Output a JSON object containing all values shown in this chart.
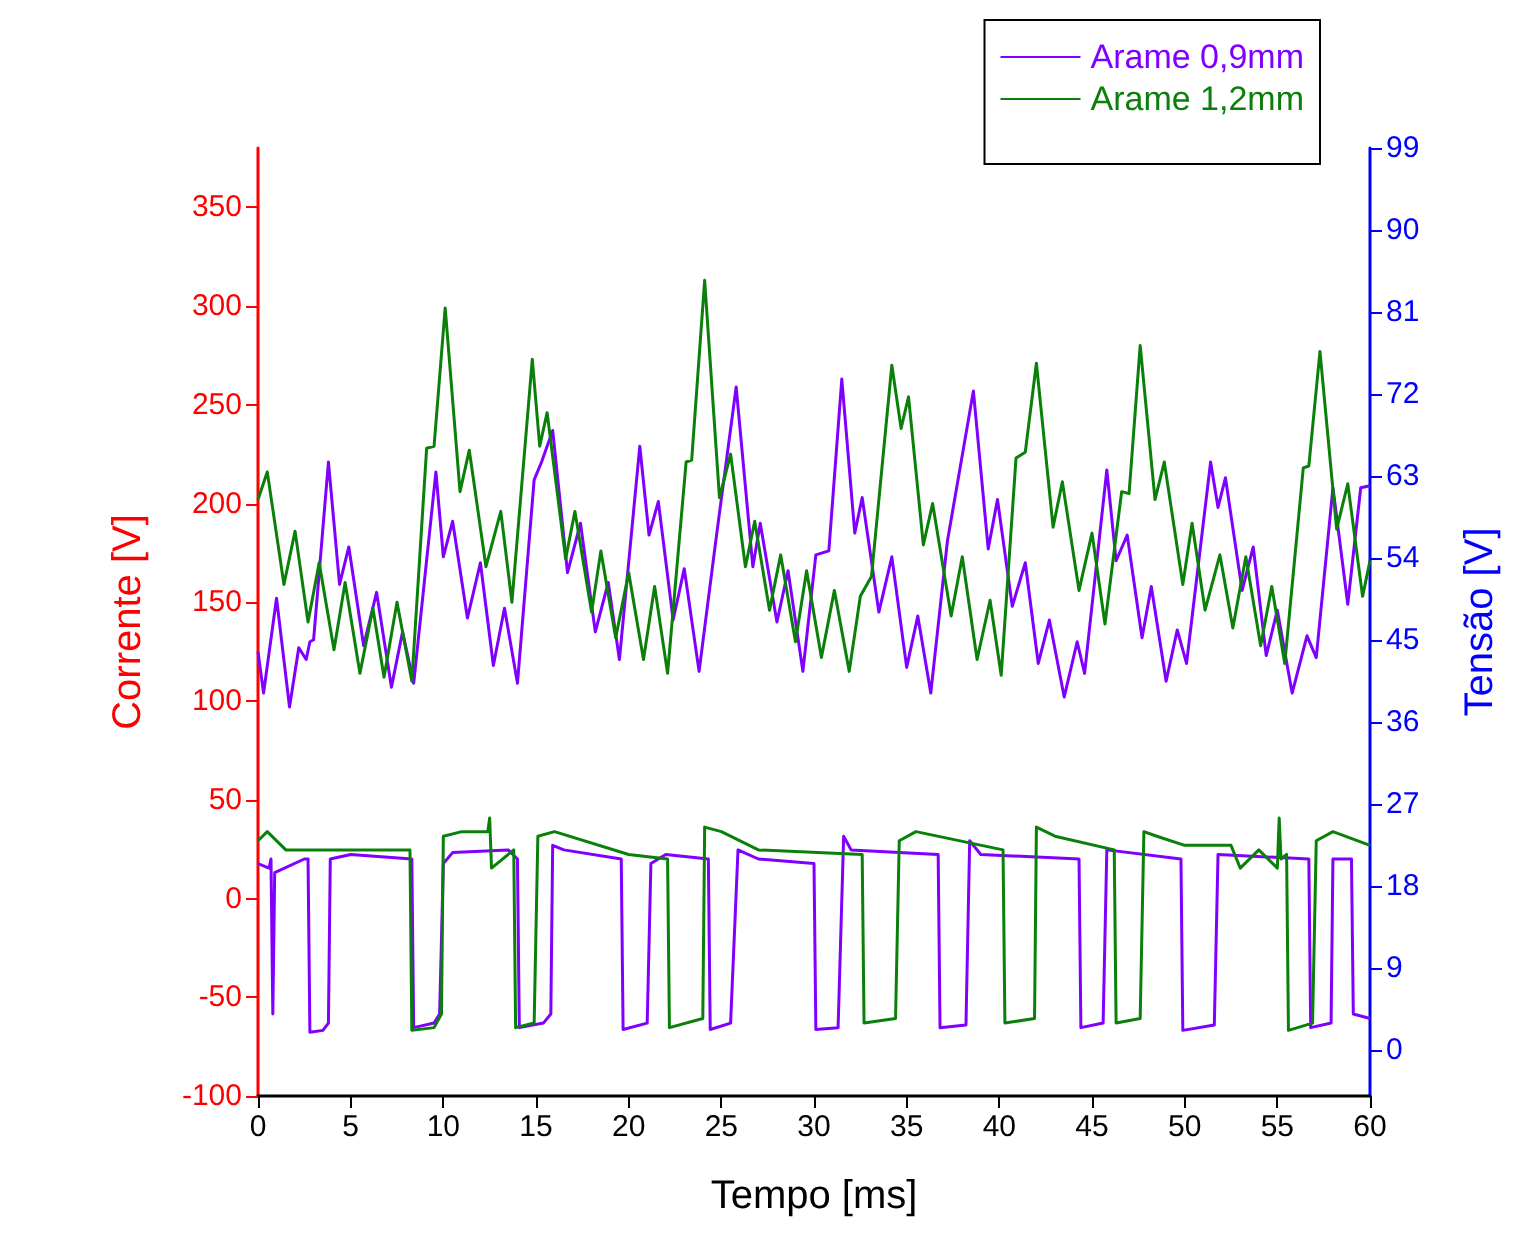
{
  "chart_data": {
    "type": "line",
    "xlabel": "Tempo [ms]",
    "ylabel": "Corrente [V]",
    "y2label": "Tensão [V]",
    "xlim": [
      0,
      60
    ],
    "xticks": [
      0,
      5,
      10,
      15,
      20,
      25,
      30,
      35,
      40,
      45,
      50,
      55,
      60
    ],
    "ylim": [
      -100,
      380
    ],
    "yticks": [
      -100,
      -50,
      0,
      50,
      100,
      150,
      200,
      250,
      300,
      350
    ],
    "y2lim": [
      -5,
      99
    ],
    "y2ticks": [
      0,
      9,
      18,
      27,
      36,
      45,
      54,
      63,
      72,
      81,
      90,
      99
    ],
    "legend": "top right",
    "grid": false,
    "marker": "none",
    "line_style": "solid",
    "series": [
      {
        "name": "Arame 0,9mm",
        "color": "#8000ff",
        "x": [
          0,
          0.3,
          1.0,
          1.7,
          2.2,
          2.6,
          2.8,
          3.0,
          3.8,
          4.4,
          4.9,
          5.7,
          6.4,
          7.2,
          7.8,
          8.4,
          9.6,
          10.0,
          10.5,
          11.3,
          12.0,
          12.7,
          13.3,
          14.0,
          14.9,
          15.3,
          15.9,
          16.7,
          17.4,
          18.2,
          18.9,
          19.5,
          20.6,
          21.1,
          21.6,
          22.4,
          23.0,
          23.8,
          24.7,
          25.8,
          26.7,
          27.1,
          28.0,
          28.6,
          29.4,
          30.1,
          30.8,
          31.5,
          32.2,
          32.6,
          33.5,
          34.2,
          35.0,
          35.6,
          36.3,
          37.2,
          38.6,
          39.4,
          39.9,
          40.7,
          41.4,
          42.1,
          42.7,
          43.5,
          44.2,
          44.6,
          45.8,
          46.3,
          46.9,
          47.7,
          48.2,
          49.0,
          49.6,
          50.1,
          51.4,
          51.8,
          52.2,
          53.1,
          53.7,
          54.4,
          55.0,
          55.8,
          56.6,
          57.1,
          58.0,
          58.8,
          59.5,
          60
        ],
        "values": [
          125,
          104,
          152,
          97,
          127,
          121,
          130,
          131,
          221,
          159,
          178,
          128,
          155,
          107,
          135,
          109,
          216,
          173,
          191,
          142,
          170,
          118,
          147,
          109,
          212,
          221,
          237,
          165,
          190,
          135,
          160,
          121,
          229,
          184,
          201,
          141,
          167,
          115,
          181,
          259,
          168,
          190,
          140,
          166,
          115,
          174,
          176,
          263,
          185,
          203,
          145,
          173,
          117,
          143,
          104,
          181,
          257,
          177,
          202,
          148,
          170,
          119,
          141,
          102,
          130,
          114,
          217,
          171,
          184,
          132,
          158,
          110,
          136,
          119,
          221,
          198,
          213,
          156,
          178,
          123,
          146,
          104,
          133,
          122,
          208,
          149,
          208,
          209
        ]
      },
      {
        "name": "Arame 1,2mm",
        "color": "#0a800a",
        "x": [
          0,
          0.5,
          1.4,
          2.0,
          2.7,
          3.3,
          4.1,
          4.7,
          5.5,
          6.2,
          6.8,
          7.5,
          8.3,
          9.1,
          9.5,
          10.1,
          10.9,
          11.4,
          12.3,
          13.1,
          13.7,
          14.8,
          15.2,
          15.6,
          16.6,
          17.1,
          18.0,
          18.5,
          19.3,
          20.0,
          20.8,
          21.4,
          22.1,
          23.1,
          23.4,
          24.1,
          24.9,
          25.5,
          26.3,
          26.8,
          27.6,
          28.2,
          29.0,
          29.6,
          30.4,
          31.1,
          31.9,
          32.5,
          33.1,
          34.2,
          34.7,
          35.1,
          35.9,
          36.4,
          37.4,
          38.0,
          38.8,
          39.5,
          40.1,
          40.9,
          41.4,
          42.0,
          42.9,
          43.4,
          44.3,
          45.0,
          45.7,
          46.6,
          47.0,
          47.6,
          48.4,
          48.9,
          49.9,
          50.4,
          51.1,
          51.9,
          52.6,
          53.3,
          54.1,
          54.7,
          55.4,
          56.4,
          56.7,
          57.3,
          58.2,
          58.8,
          59.6,
          60
        ],
        "values": [
          202,
          216,
          159,
          186,
          140,
          170,
          126,
          160,
          114,
          147,
          112,
          150,
          110,
          228,
          229,
          299,
          206,
          227,
          168,
          196,
          150,
          273,
          229,
          246,
          172,
          196,
          145,
          176,
          132,
          165,
          121,
          158,
          114,
          221,
          222,
          313,
          203,
          225,
          168,
          191,
          146,
          174,
          130,
          166,
          122,
          156,
          115,
          153,
          163,
          270,
          238,
          254,
          179,
          200,
          143,
          173,
          121,
          151,
          113,
          223,
          226,
          271,
          188,
          211,
          156,
          185,
          139,
          206,
          205,
          280,
          202,
          221,
          159,
          190,
          146,
          174,
          137,
          173,
          128,
          158,
          119,
          218,
          219,
          277,
          187,
          210,
          153,
          171
        ]
      },
      {
        "axis": "y2",
        "color": "#8000ff",
        "x": [
          0,
          0.6,
          0.7,
          0.8,
          0.9,
          2.5,
          2.7,
          2.8,
          3.5,
          3.8,
          3.9,
          5,
          8.3,
          8.4,
          9.5,
          9.8,
          10.0,
          10.5,
          13.5,
          14.0,
          14.1,
          15.4,
          15.8,
          15.9,
          16.5,
          19.6,
          19.7,
          21,
          21.2,
          22,
          24.3,
          24.4,
          25.5,
          25.9,
          27,
          30.0,
          30.1,
          31.3,
          31.6,
          32,
          36.7,
          36.8,
          38.2,
          38.4,
          39,
          44.3,
          44.4,
          45.6,
          45.8,
          49.8,
          49.9,
          51.6,
          51.8,
          56.7,
          56.8,
          57.9,
          58.0,
          59.0,
          59.1,
          60
        ],
        "values": [
          20.5,
          20,
          21,
          4,
          19.5,
          21,
          21,
          2,
          2.2,
          3,
          21,
          21.5,
          21,
          2.5,
          3,
          4,
          20.5,
          21.7,
          22,
          21,
          2.5,
          3,
          4,
          22.5,
          22,
          21,
          2.3,
          3,
          20.5,
          21.5,
          21,
          2.3,
          3,
          22,
          21,
          20.5,
          2.3,
          2.5,
          23.5,
          22,
          21.5,
          2.5,
          2.8,
          23,
          21.5,
          21,
          2.5,
          3,
          22,
          21,
          2.2,
          2.8,
          21.5,
          21,
          2.5,
          3,
          21,
          21,
          4,
          3.5
        ]
      },
      {
        "axis": "y2",
        "color": "#0a800a",
        "x": [
          0,
          0.5,
          1.5,
          8.2,
          8.3,
          9.5,
          9.9,
          10.0,
          11,
          12.4,
          12.5,
          12.6,
          13.8,
          13.9,
          14.9,
          15.1,
          16,
          20,
          22.1,
          22.2,
          24.0,
          24.1,
          25,
          27,
          32.6,
          32.7,
          34.4,
          34.6,
          35.5,
          40.2,
          40.3,
          41.9,
          42.0,
          43,
          46.2,
          46.3,
          47.6,
          47.8,
          48.5,
          50,
          52.5,
          53,
          54,
          55.0,
          55.1,
          55.2,
          55.5,
          55.6,
          56.9,
          57.1,
          58,
          60
        ],
        "values": [
          23,
          24,
          22,
          22,
          2.2,
          2.5,
          4,
          23.5,
          24,
          24,
          25.5,
          20,
          22,
          2.5,
          3,
          23.5,
          24,
          21.5,
          21,
          2.5,
          3.5,
          24.5,
          24,
          22,
          21.5,
          3,
          3.5,
          23,
          24,
          22,
          3,
          3.5,
          24.5,
          23.5,
          22,
          3,
          3.5,
          24,
          23.5,
          22.5,
          22.5,
          20,
          22,
          20,
          25.5,
          21,
          21.5,
          2.2,
          3,
          23,
          24,
          22.5
        ]
      }
    ]
  }
}
